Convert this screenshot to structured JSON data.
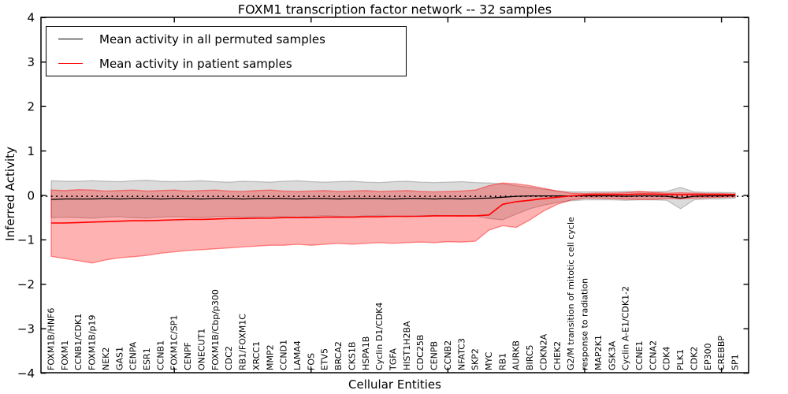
{
  "title": "FOXM1 transcription factor network -- 32 samples",
  "legend": {
    "items": [
      {
        "label": "Mean activity in all permuted samples",
        "color": "#000000"
      },
      {
        "label": "Mean activity in patient samples",
        "color": "#ff0000"
      }
    ]
  },
  "colors": {
    "permuted_line": "#000000",
    "patient_line": "#ff0000",
    "permuted_band": "#000000",
    "patient_band": "#ff0000",
    "axis": "#000000"
  },
  "chart_data": {
    "type": "line",
    "title": "FOXM1 transcription factor network -- 32 samples",
    "xlabel": "Cellular Entities",
    "ylabel": "Inferred Activity",
    "ylim": [
      -4,
      4
    ],
    "yticks": [
      4,
      3,
      2,
      1,
      0,
      -1,
      -2,
      -3,
      -4
    ],
    "ytick_labels": [
      "4",
      "3",
      "2",
      "1",
      "0",
      "−1",
      "−2",
      "−3",
      "−4"
    ],
    "x_major_tick_indices": [
      9,
      19,
      29,
      39,
      49
    ],
    "grid": false,
    "legend_position": "upper left",
    "categories": [
      "FOXM1B/HNF6",
      "FOXM1",
      "CCNB1/CDK1",
      "FOXM1B/p19",
      "NEK2",
      "GAS1",
      "CENPA",
      "ESR1",
      "CCNB1",
      "FOXM1C/SP1",
      "CENPF",
      "ONECUT1",
      "FOXM1B/Cbp/p300",
      "CDC2",
      "RB1/FOXM1C",
      "XRCC1",
      "MMP2",
      "CCND1",
      "LAMA4",
      "FOS",
      "ETV5",
      "BRCA2",
      "CKS1B",
      "HSPA1B",
      "Cyclin D1/CDK4",
      "TGFA",
      "HIST1H2BA",
      "CDC25B",
      "CENPB",
      "CCNB2",
      "NFATC3",
      "SKP2",
      "MYC",
      "RB1",
      "AURKB",
      "BIRC5",
      "CDKN2A",
      "CHEK2",
      "G2/M transition of mitotic cell cycle",
      "response to radiation",
      "MAP2K1",
      "GSK3A",
      "Cyclin A-E1/CDK1-2",
      "CCNE1",
      "CCNA2",
      "CDK4",
      "PLK1",
      "CDK2",
      "EP300",
      "CREBBP",
      "SP1"
    ],
    "series": [
      {
        "name": "Mean activity in all permuted samples",
        "color": "#000000",
        "style": "solid",
        "values": [
          -0.09,
          -0.08,
          -0.08,
          -0.08,
          -0.07,
          -0.08,
          -0.07,
          -0.07,
          -0.08,
          -0.07,
          -0.07,
          -0.08,
          -0.07,
          -0.07,
          -0.08,
          -0.07,
          -0.07,
          -0.07,
          -0.08,
          -0.07,
          -0.07,
          -0.08,
          -0.07,
          -0.07,
          -0.07,
          -0.08,
          -0.07,
          -0.07,
          -0.08,
          -0.07,
          -0.08,
          -0.07,
          -0.06,
          -0.04,
          -0.02,
          -0.01,
          -0.01,
          -0.01,
          -0.01,
          -0.01,
          -0.01,
          -0.01,
          -0.02,
          -0.01,
          -0.01,
          -0.02,
          -0.06,
          -0.02,
          -0.01,
          -0.01,
          0.0
        ]
      },
      {
        "name": "Mean activity in patient samples",
        "color": "#ff0000",
        "style": "solid",
        "values": [
          -0.62,
          -0.62,
          -0.61,
          -0.6,
          -0.59,
          -0.58,
          -0.57,
          -0.57,
          -0.56,
          -0.55,
          -0.54,
          -0.54,
          -0.53,
          -0.52,
          -0.52,
          -0.51,
          -0.51,
          -0.5,
          -0.5,
          -0.5,
          -0.49,
          -0.49,
          -0.49,
          -0.48,
          -0.48,
          -0.47,
          -0.47,
          -0.47,
          -0.46,
          -0.46,
          -0.46,
          -0.46,
          -0.44,
          -0.2,
          -0.14,
          -0.11,
          -0.07,
          -0.04,
          -0.01,
          0.01,
          0.02,
          0.02,
          0.02,
          0.03,
          0.03,
          0.02,
          0.02,
          0.02,
          0.02,
          0.02,
          0.02
        ]
      }
    ],
    "baseline": {
      "name": "zero reference",
      "color": "#000000",
      "style": "dotted",
      "value": -0.02
    },
    "bands": [
      {
        "name": "permuted activity range",
        "color": "#000000",
        "opacity": 0.14,
        "upper": [
          0.33,
          0.32,
          0.32,
          0.33,
          0.32,
          0.31,
          0.33,
          0.34,
          0.32,
          0.31,
          0.32,
          0.33,
          0.31,
          0.3,
          0.32,
          0.31,
          0.3,
          0.32,
          0.33,
          0.31,
          0.3,
          0.31,
          0.32,
          0.3,
          0.29,
          0.31,
          0.32,
          0.3,
          0.29,
          0.3,
          0.31,
          0.29,
          0.28,
          0.26,
          0.22,
          0.18,
          0.14,
          0.1,
          0.08,
          0.08,
          0.08,
          0.08,
          0.09,
          0.08,
          0.08,
          0.09,
          0.18,
          0.08,
          0.07,
          0.07,
          0.06
        ],
        "lower": [
          -0.5,
          -0.49,
          -0.5,
          -0.51,
          -0.49,
          -0.48,
          -0.5,
          -0.51,
          -0.49,
          -0.48,
          -0.49,
          -0.5,
          -0.48,
          -0.47,
          -0.49,
          -0.48,
          -0.47,
          -0.48,
          -0.49,
          -0.47,
          -0.46,
          -0.47,
          -0.48,
          -0.46,
          -0.45,
          -0.47,
          -0.48,
          -0.46,
          -0.45,
          -0.46,
          -0.47,
          -0.46,
          -0.52,
          -0.55,
          -0.42,
          -0.3,
          -0.22,
          -0.16,
          -0.12,
          -0.1,
          -0.1,
          -0.1,
          -0.11,
          -0.1,
          -0.1,
          -0.11,
          -0.3,
          -0.1,
          -0.08,
          -0.08,
          -0.06
        ]
      },
      {
        "name": "patient activity range",
        "color": "#ff0000",
        "opacity": 0.3,
        "upper": [
          0.12,
          0.11,
          0.13,
          0.12,
          0.1,
          0.11,
          0.12,
          0.1,
          0.11,
          0.12,
          0.1,
          0.11,
          0.12,
          0.1,
          0.09,
          0.11,
          0.12,
          0.1,
          0.09,
          0.1,
          0.11,
          0.09,
          0.1,
          0.11,
          0.09,
          0.1,
          0.11,
          0.09,
          0.08,
          0.09,
          0.1,
          0.12,
          0.22,
          0.28,
          0.26,
          0.22,
          0.16,
          0.1,
          0.05,
          0.04,
          0.05,
          0.05,
          0.06,
          0.09,
          0.07,
          0.05,
          0.06,
          0.05,
          0.04,
          0.04,
          0.03
        ],
        "lower": [
          -1.37,
          -1.42,
          -1.47,
          -1.52,
          -1.45,
          -1.4,
          -1.38,
          -1.35,
          -1.3,
          -1.27,
          -1.24,
          -1.22,
          -1.2,
          -1.18,
          -1.16,
          -1.14,
          -1.12,
          -1.12,
          -1.1,
          -1.12,
          -1.1,
          -1.08,
          -1.1,
          -1.08,
          -1.06,
          -1.08,
          -1.06,
          -1.05,
          -1.06,
          -1.04,
          -1.05,
          -1.03,
          -0.78,
          -0.68,
          -0.72,
          -0.55,
          -0.35,
          -0.2,
          -0.1,
          -0.06,
          -0.06,
          -0.07,
          -0.08,
          -0.09,
          -0.09,
          -0.07,
          -0.08,
          -0.06,
          -0.05,
          -0.04,
          -0.03
        ]
      }
    ]
  }
}
